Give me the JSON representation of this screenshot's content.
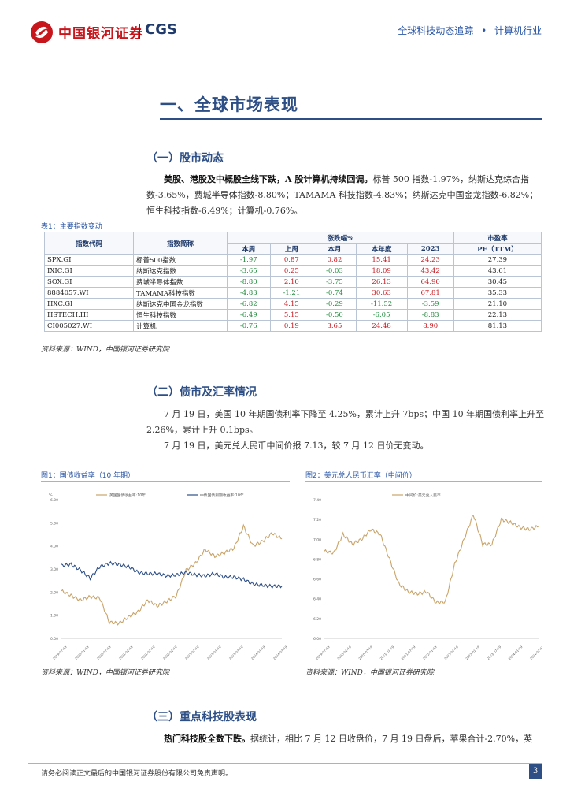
{
  "header": {
    "logo_cn": "中国银河证券",
    "logo_en": "CGS",
    "report_series": "全球科技动态追踪",
    "dot": "•",
    "industry": "计算机行业"
  },
  "section1": {
    "title": "一、全球市场表现"
  },
  "stock": {
    "title": "（一）股市动态",
    "para_lead": "美股、港股及中概股全线下跌，A 股计算机持续回调。",
    "para_lines": [
      "标普 500 指数-1.97%，纳斯达克综合指",
      "数-3.65%，费城半导体指数-8.80%；TAMAMA 科技指数-4.83%；纳斯达克中国金龙指数-6.82%；",
      "恒生科技指数-6.49%；计算机-0.76%。"
    ]
  },
  "table1": {
    "caption": "表1：主要指数变动",
    "head_code": "指数代码",
    "head_name": "指数简称",
    "head_change": "涨跌幅%",
    "head_pe": "市盈率",
    "sub_headers": [
      "本周",
      "上周",
      "本月",
      "本年度",
      "2023",
      "PE（TTM）"
    ],
    "rows": [
      {
        "code": "SPX.GI",
        "name": "标普500指数",
        "wk": "-1.97",
        "lw": "0.87",
        "mo": "0.82",
        "ytd": "15.41",
        "y23": "24.23",
        "pe": "27.39"
      },
      {
        "code": "IXIC.GI",
        "name": "纳斯达克指数",
        "wk": "-3.65",
        "lw": "0.25",
        "mo": "-0.03",
        "ytd": "18.09",
        "y23": "43.42",
        "pe": "43.61"
      },
      {
        "code": "SOX.GI",
        "name": "费城半导体指数",
        "wk": "-8.80",
        "lw": "2.10",
        "mo": "-3.75",
        "ytd": "26.13",
        "y23": "64.90",
        "pe": "30.45"
      },
      {
        "code": "8884057.WI",
        "name": "TAMAMA科技指数",
        "wk": "-4.83",
        "lw": "-1.21",
        "mo": "-0.74",
        "ytd": "30.63",
        "y23": "67.81",
        "pe": "35.33"
      },
      {
        "code": "HXC.GI",
        "name": "纳斯达克中国金龙指数",
        "wk": "-6.82",
        "lw": "4.15",
        "mo": "-0.29",
        "ytd": "-11.52",
        "y23": "-3.59",
        "pe": "21.10"
      },
      {
        "code": "HSTECH.HI",
        "name": "恒生科技指数",
        "wk": "-6.49",
        "lw": "5.15",
        "mo": "-0.50",
        "ytd": "-6.05",
        "y23": "-8.83",
        "pe": "22.13"
      },
      {
        "code": "CI005027.WI",
        "name": "计算机",
        "wk": "-0.76",
        "lw": "0.19",
        "mo": "3.65",
        "ytd": "24.48",
        "y23": "8.90",
        "pe": "81.13"
      }
    ],
    "source": "资料来源：WIND，中国银河证券研究院"
  },
  "bond": {
    "title": "（二）债市及汇率情况",
    "line1": "7 月 19 日，美国 10 年期国债利率下降至 4.25%，累计上升 7bps；中国 10 年期国债利率上升至",
    "line2": "2.26%，累计上升 0.1bps。",
    "line3": "7 月 19 日，美元兑人民币中间价报 7.13，较 7 月 12 日价无变动。"
  },
  "chart_left": {
    "caption": "图1：国债收益率（10 年期）",
    "source": "资料来源：WIND，中国银河证券研究院"
  },
  "chart_right": {
    "caption": "图2：美元兑人民币汇率（中间价）",
    "source": "资料来源：WIND，中国银河证券研究院"
  },
  "chart_data": [
    {
      "type": "line",
      "title": "",
      "ylabel": "%",
      "ylim": [
        0,
        6
      ],
      "y_ticks": [
        "0.00",
        "1.00",
        "2.00",
        "3.00",
        "4.00",
        "5.00",
        "6.00"
      ],
      "x_ticks": [
        "2019-07-19",
        "2020-01-19",
        "2020-07-19",
        "2021-01-19",
        "2021-07-19",
        "2022-01-19",
        "2022-07-19",
        "2023-01-19",
        "2023-07-19",
        "2024-01-19",
        "2024-07-19"
      ],
      "legend": "top",
      "series": [
        {
          "name": "美国国债收益率:10年",
          "color": "#c9a46a",
          "values": [
            2.05,
            1.85,
            1.65,
            1.8,
            1.75,
            0.7,
            0.65,
            0.92,
            1.15,
            1.65,
            1.4,
            1.6,
            1.85,
            2.95,
            3.25,
            3.85,
            3.55,
            3.7,
            3.9,
            4.85,
            4.0,
            4.2,
            4.55,
            4.3
          ]
        },
        {
          "name": "中债国债到期收益率:10年",
          "color": "#2d4f86",
          "values": [
            3.15,
            3.2,
            2.95,
            2.6,
            3.1,
            3.25,
            3.2,
            3.1,
            2.85,
            2.8,
            2.8,
            2.7,
            2.75,
            2.85,
            2.75,
            2.7,
            2.8,
            2.65,
            2.65,
            2.55,
            2.35,
            2.3,
            2.25,
            2.26
          ]
        }
      ]
    },
    {
      "type": "line",
      "title": "",
      "ylim": [
        6.0,
        7.4
      ],
      "y_ticks": [
        "6.00",
        "6.20",
        "6.40",
        "6.60",
        "6.80",
        "7.00",
        "7.20",
        "7.40"
      ],
      "x_ticks": [
        "2019-07-19",
        "2020-01-19",
        "2020-07-19",
        "2021-01-19",
        "2021-07-19",
        "2022-01-19",
        "2022-07-19",
        "2023-01-19",
        "2023-07-19",
        "2024-01-19",
        "2024-07-19"
      ],
      "legend": "top",
      "series": [
        {
          "name": "中间价:美元兑人民币",
          "color": "#c9a46a",
          "values": [
            6.88,
            6.86,
            7.05,
            6.95,
            7.0,
            7.1,
            7.05,
            6.8,
            6.55,
            6.47,
            6.45,
            6.47,
            6.36,
            6.37,
            6.75,
            7.0,
            7.25,
            6.95,
            6.95,
            7.2,
            7.17,
            7.12,
            7.1,
            7.13
          ]
        }
      ]
    }
  ],
  "keystock": {
    "title": "（三）重点科技股表现",
    "line_lead": "热门科技股全数下跌。",
    "line_rest": "据统计，相比 7 月 12 日收盘价，7 月 19 日盘后，苹果合计-2.70%，英"
  },
  "footer": {
    "disclaimer": "请务必阅读正文最后的中国银河证券股份有限公司免责声明。",
    "page": "3"
  }
}
